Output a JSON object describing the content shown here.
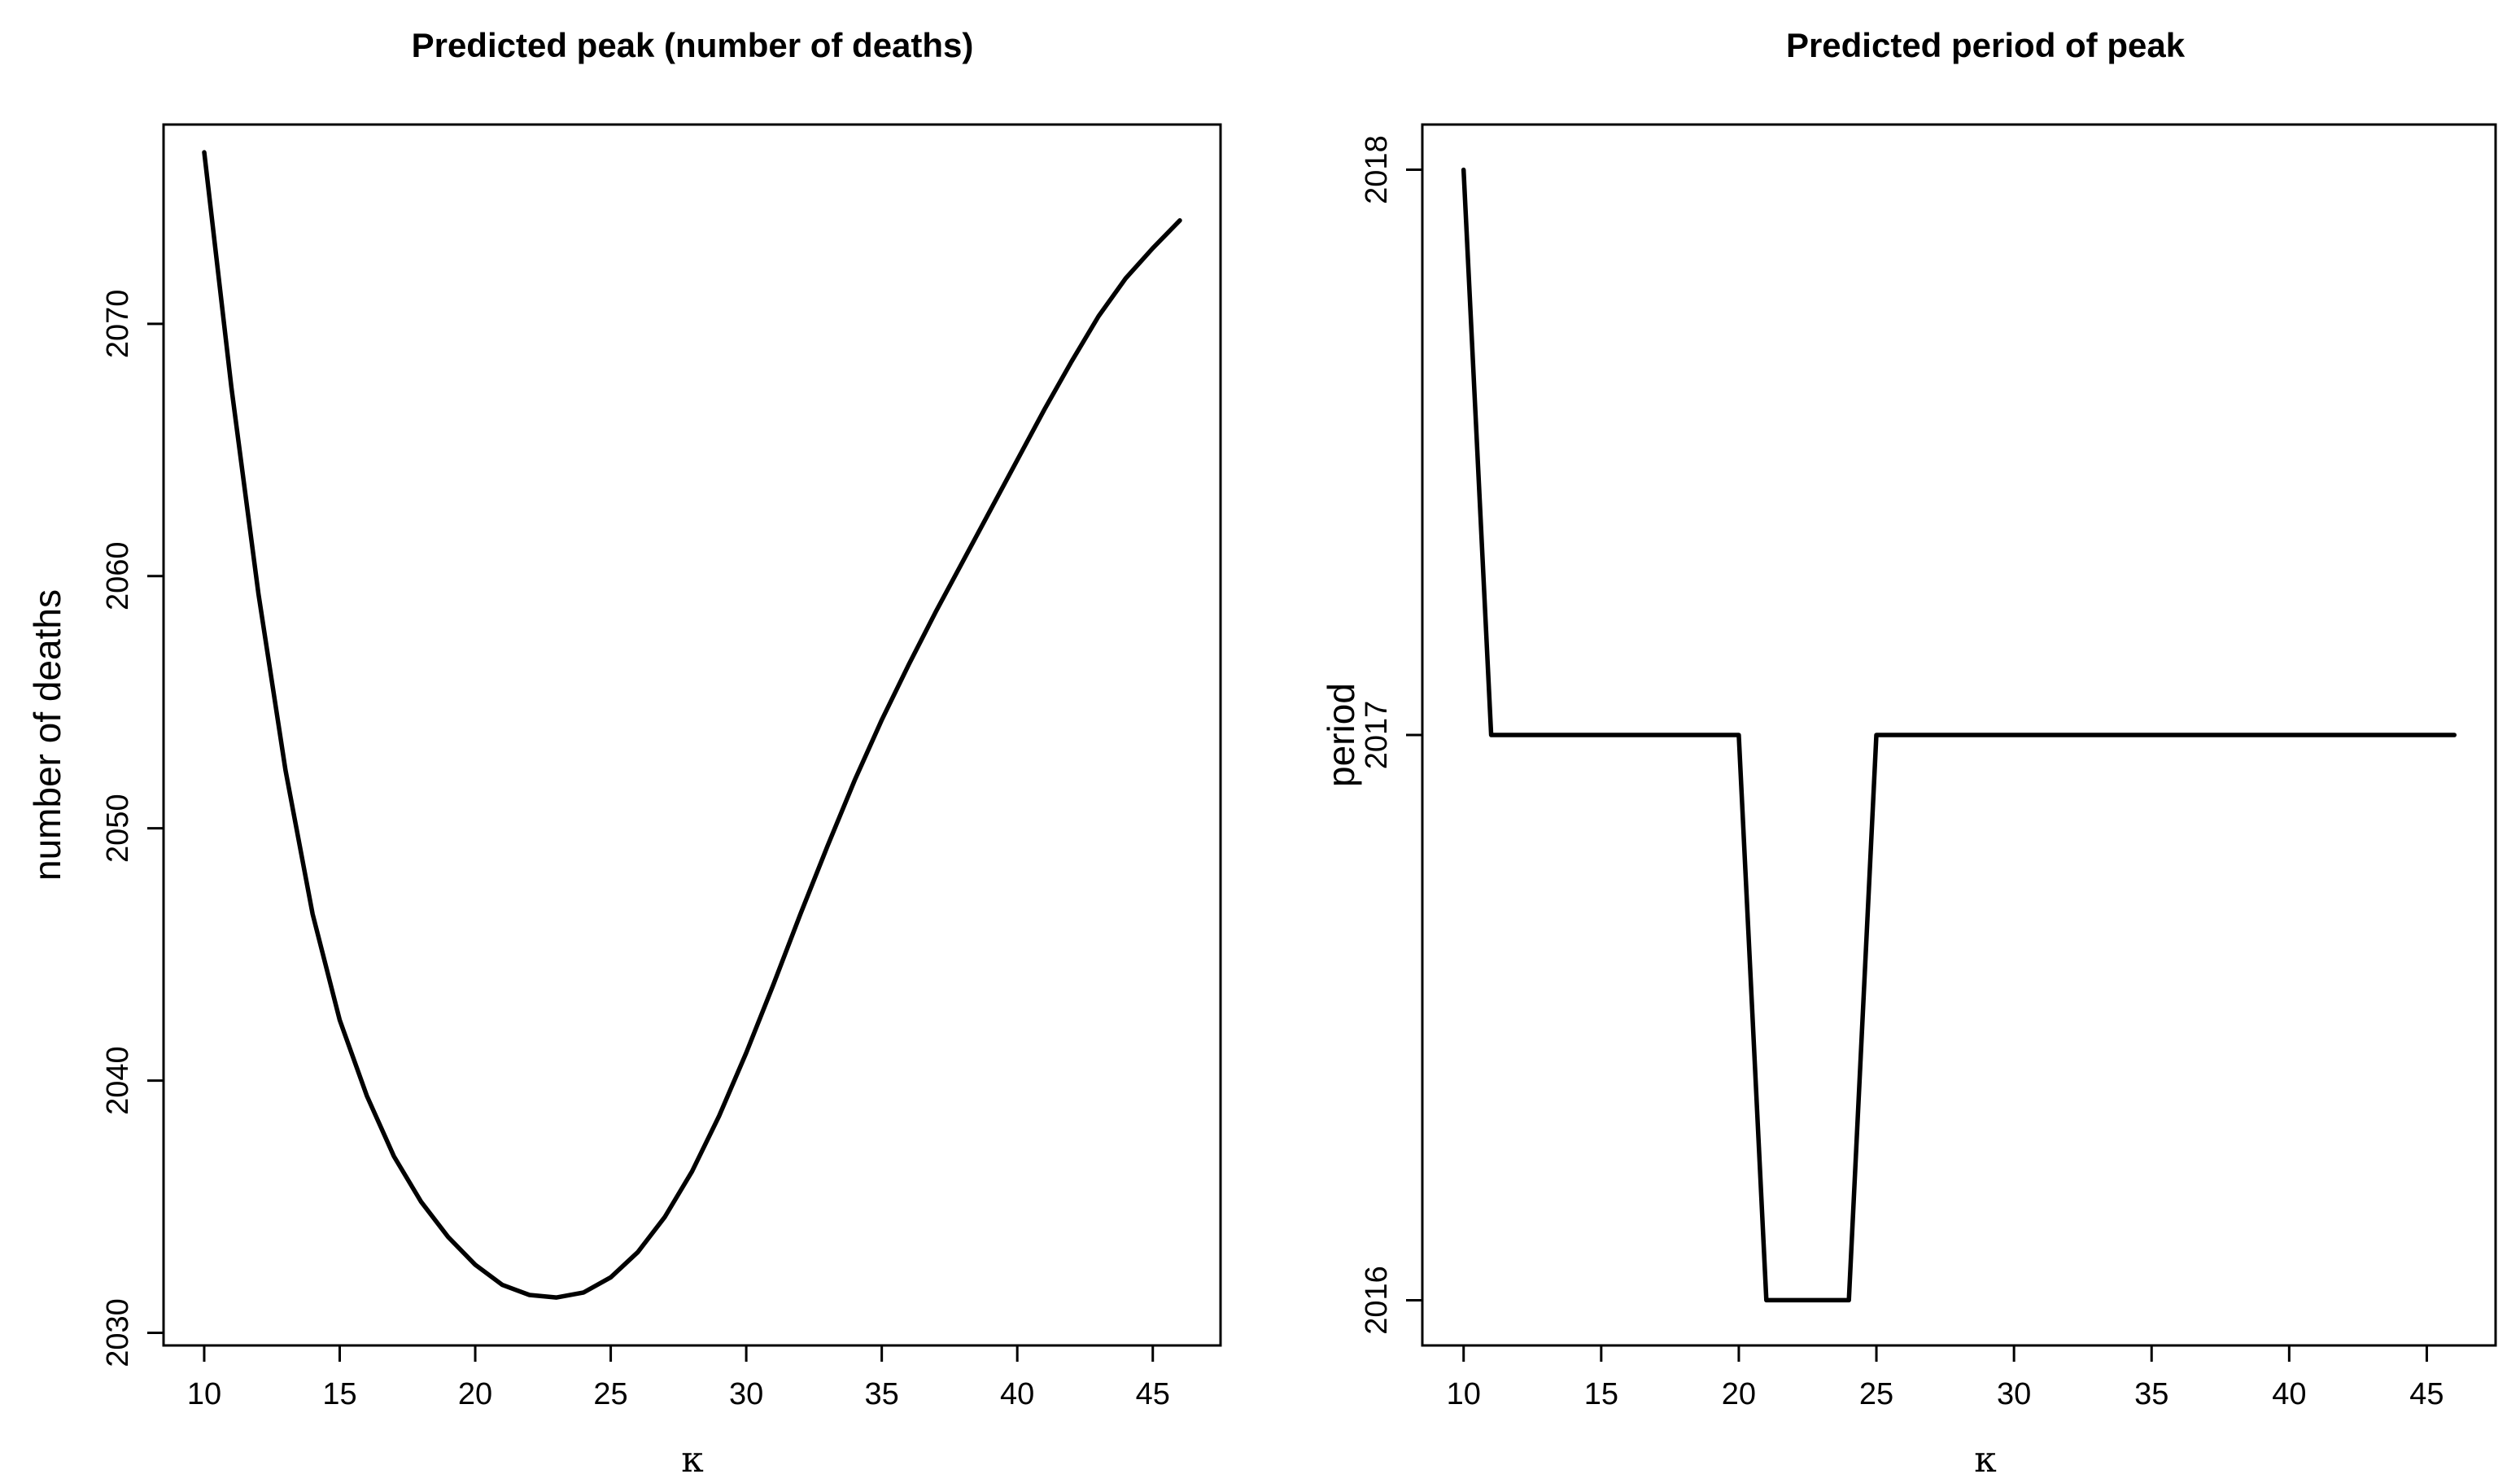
{
  "chart_data": [
    {
      "type": "line",
      "title": "Predicted peak (number of deaths)",
      "xlabel": "κ",
      "ylabel": "number of deaths",
      "xlim": [
        8.5,
        47.5
      ],
      "ylim": [
        2029.5,
        2077.9
      ],
      "x_ticks": [
        10,
        15,
        20,
        25,
        30,
        35,
        40,
        45
      ],
      "y_ticks": [
        2030,
        2040,
        2050,
        2060,
        2070
      ],
      "grid": false,
      "x": [
        10,
        11,
        12,
        13,
        14,
        15,
        16,
        17,
        18,
        19,
        20,
        21,
        22,
        23,
        24,
        25,
        26,
        27,
        28,
        29,
        30,
        31,
        32,
        33,
        34,
        35,
        36,
        37,
        38,
        39,
        40,
        41,
        42,
        43,
        44,
        45,
        46
      ],
      "series": [
        {
          "values": [
            2076.8,
            2067.5,
            2059.3,
            2052.3,
            2046.6,
            2042.4,
            2039.4,
            2037.0,
            2035.2,
            2033.8,
            2032.7,
            2031.9,
            2031.5,
            2031.4,
            2031.6,
            2032.2,
            2033.2,
            2034.6,
            2036.4,
            2038.6,
            2041.1,
            2043.8,
            2046.6,
            2049.3,
            2051.9,
            2054.3,
            2056.5,
            2058.6,
            2060.6,
            2062.6,
            2064.6,
            2066.6,
            2068.5,
            2070.3,
            2071.8,
            2073.0,
            2074.1
          ]
        }
      ]
    },
    {
      "type": "line",
      "title": "Predicted period of peak",
      "xlabel": "κ",
      "ylabel": "period",
      "xlim": [
        8.5,
        47.5
      ],
      "ylim": [
        2015.92,
        2018.08
      ],
      "x_ticks": [
        10,
        15,
        20,
        25,
        30,
        35,
        40,
        45
      ],
      "y_ticks": [
        2016,
        2017,
        2018
      ],
      "grid": false,
      "x": [
        10,
        11,
        12,
        13,
        14,
        15,
        16,
        17,
        18,
        19,
        20,
        21,
        22,
        23,
        24,
        25,
        26,
        27,
        28,
        29,
        30,
        31,
        32,
        33,
        34,
        35,
        36,
        37,
        38,
        39,
        40,
        41,
        42,
        43,
        44,
        45,
        46
      ],
      "series": [
        {
          "values": [
            2018,
            2017,
            2017,
            2017,
            2017,
            2017,
            2017,
            2017,
            2017,
            2017,
            2017,
            2016,
            2016,
            2016,
            2016,
            2017,
            2017,
            2017,
            2017,
            2017,
            2017,
            2017,
            2017,
            2017,
            2017,
            2017,
            2017,
            2017,
            2017,
            2017,
            2017,
            2017,
            2017,
            2017,
            2017,
            2017,
            2017
          ]
        }
      ]
    }
  ]
}
